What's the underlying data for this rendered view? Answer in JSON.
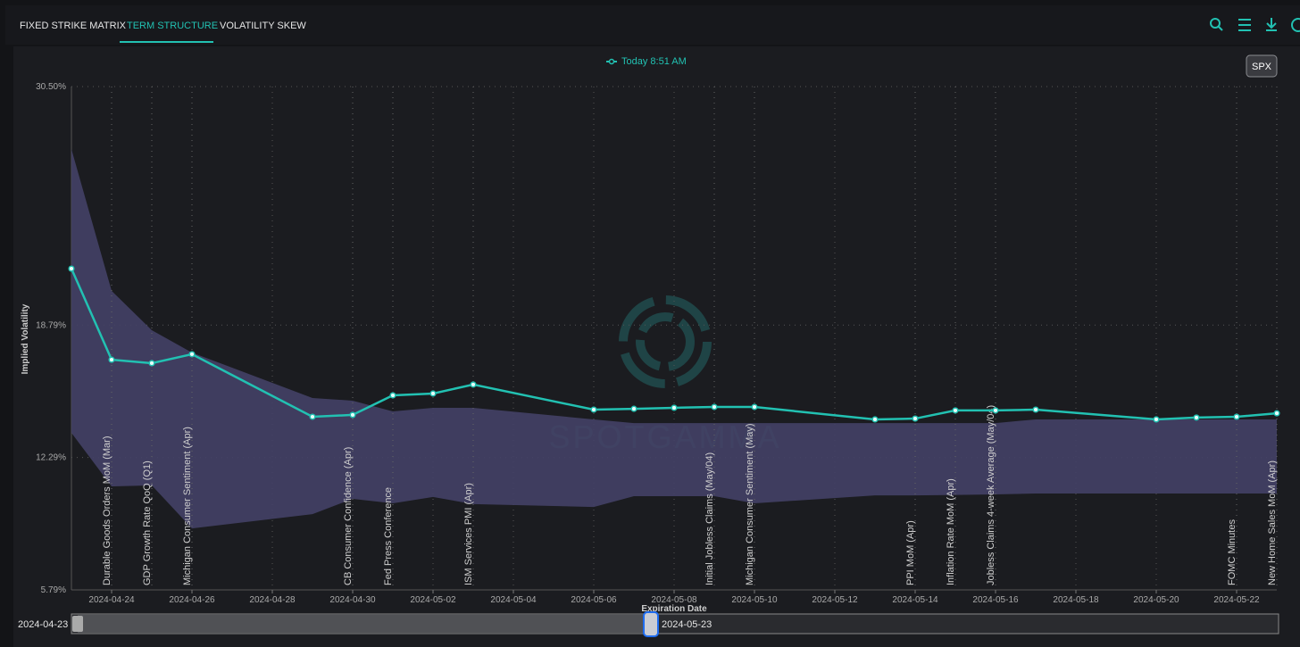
{
  "tabs": [
    "FIXED STRIKE MATRIX",
    "TERM STRUCTURE",
    "VOLATILITY SKEW"
  ],
  "symbol_button": "SPX",
  "watermark": "SPOTGAMMA",
  "chart_data": {
    "type": "line",
    "x_label": "Expiration Date",
    "y_label": "Implied Volatility",
    "x": [
      "2024-04-23",
      "2024-04-24",
      "2024-04-25",
      "2024-04-26",
      "2024-04-29",
      "2024-04-30",
      "2024-05-01",
      "2024-05-02",
      "2024-05-03",
      "2024-05-06",
      "2024-05-07",
      "2024-05-08",
      "2024-05-09",
      "2024-05-10",
      "2024-05-13",
      "2024-05-14",
      "2024-05-15",
      "2024-05-16",
      "2024-05-17",
      "2024-05-20",
      "2024-05-21",
      "2024-05-22",
      "2024-05-23"
    ],
    "series": [
      {
        "name": "Today 8:51 AM",
        "color": "#22c1b2",
        "values": [
          21.56,
          17.09,
          16.92,
          17.36,
          14.29,
          14.38,
          15.34,
          15.43,
          15.87,
          14.64,
          14.68,
          14.73,
          14.77,
          14.77,
          14.16,
          14.2,
          14.6,
          14.6,
          14.64,
          14.16,
          14.25,
          14.29,
          14.46
        ]
      }
    ],
    "band": {
      "color": "#444166",
      "upper": [
        27.43,
        20.47,
        18.54,
        17.44,
        15.21,
        15.08,
        14.55,
        14.73,
        14.73,
        14.16,
        13.98,
        13.98,
        13.98,
        13.98,
        13.98,
        13.98,
        13.98,
        13.98,
        14.16,
        14.16,
        14.16,
        14.16,
        14.16
      ],
      "lower": [
        13.5,
        10.87,
        10.92,
        8.81,
        9.51,
        10.26,
        10.04,
        10.35,
        10.0,
        9.86,
        10.39,
        10.39,
        10.39,
        10.04,
        10.43,
        10.43,
        10.45,
        10.48,
        10.52,
        10.52,
        10.52,
        10.52,
        10.52
      ]
    },
    "xlim": [
      "2024-04-23",
      "2024-05-23"
    ],
    "xticks": [
      "2024-04-24",
      "2024-04-26",
      "2024-04-28",
      "2024-04-30",
      "2024-05-02",
      "2024-05-04",
      "2024-05-06",
      "2024-05-08",
      "2024-05-10",
      "2024-05-12",
      "2024-05-14",
      "2024-05-16",
      "2024-05-18",
      "2024-05-20",
      "2024-05-22"
    ],
    "ylim": [
      5.79,
      30.5
    ],
    "yticks": [
      {
        "value": 5.79,
        "label": "5.79%"
      },
      {
        "value": 12.29,
        "label": "12.29%"
      },
      {
        "value": 18.79,
        "label": "18.79%"
      },
      {
        "value": 30.5,
        "label": "30.50%"
      }
    ],
    "grid": true,
    "annotations": [
      {
        "date": "2024-04-24",
        "text": "Durable Goods Orders MoM (Mar)"
      },
      {
        "date": "2024-04-25",
        "text": "GDP Growth Rate QoQ (Q1)"
      },
      {
        "date": "2024-04-26",
        "text": "Michigan Consumer Sentiment (Apr)"
      },
      {
        "date": "2024-04-30",
        "text": "CB Consumer Confidence (Apr)"
      },
      {
        "date": "2024-05-01",
        "text": "Fed Press Conference"
      },
      {
        "date": "2024-05-03",
        "text": "ISM Services PMI (Apr)"
      },
      {
        "date": "2024-05-09",
        "text": "Initial Jobless Claims (May/04)"
      },
      {
        "date": "2024-05-10",
        "text": "Michigan Consumer Sentiment (May)"
      },
      {
        "date": "2024-05-14",
        "text": "PPI MoM (Apr)"
      },
      {
        "date": "2024-05-15",
        "text": "Inflation Rate MoM (Apr)"
      },
      {
        "date": "2024-05-16",
        "text": "Jobless Claims 4-week Average (May/04)"
      },
      {
        "date": "2024-05-22",
        "text": "FOMC Minutes"
      },
      {
        "date": "2024-05-23",
        "text": "New Home Sales MoM (Apr)"
      }
    ],
    "range_start": "2024-04-23",
    "range_end": "2024-05-23"
  }
}
